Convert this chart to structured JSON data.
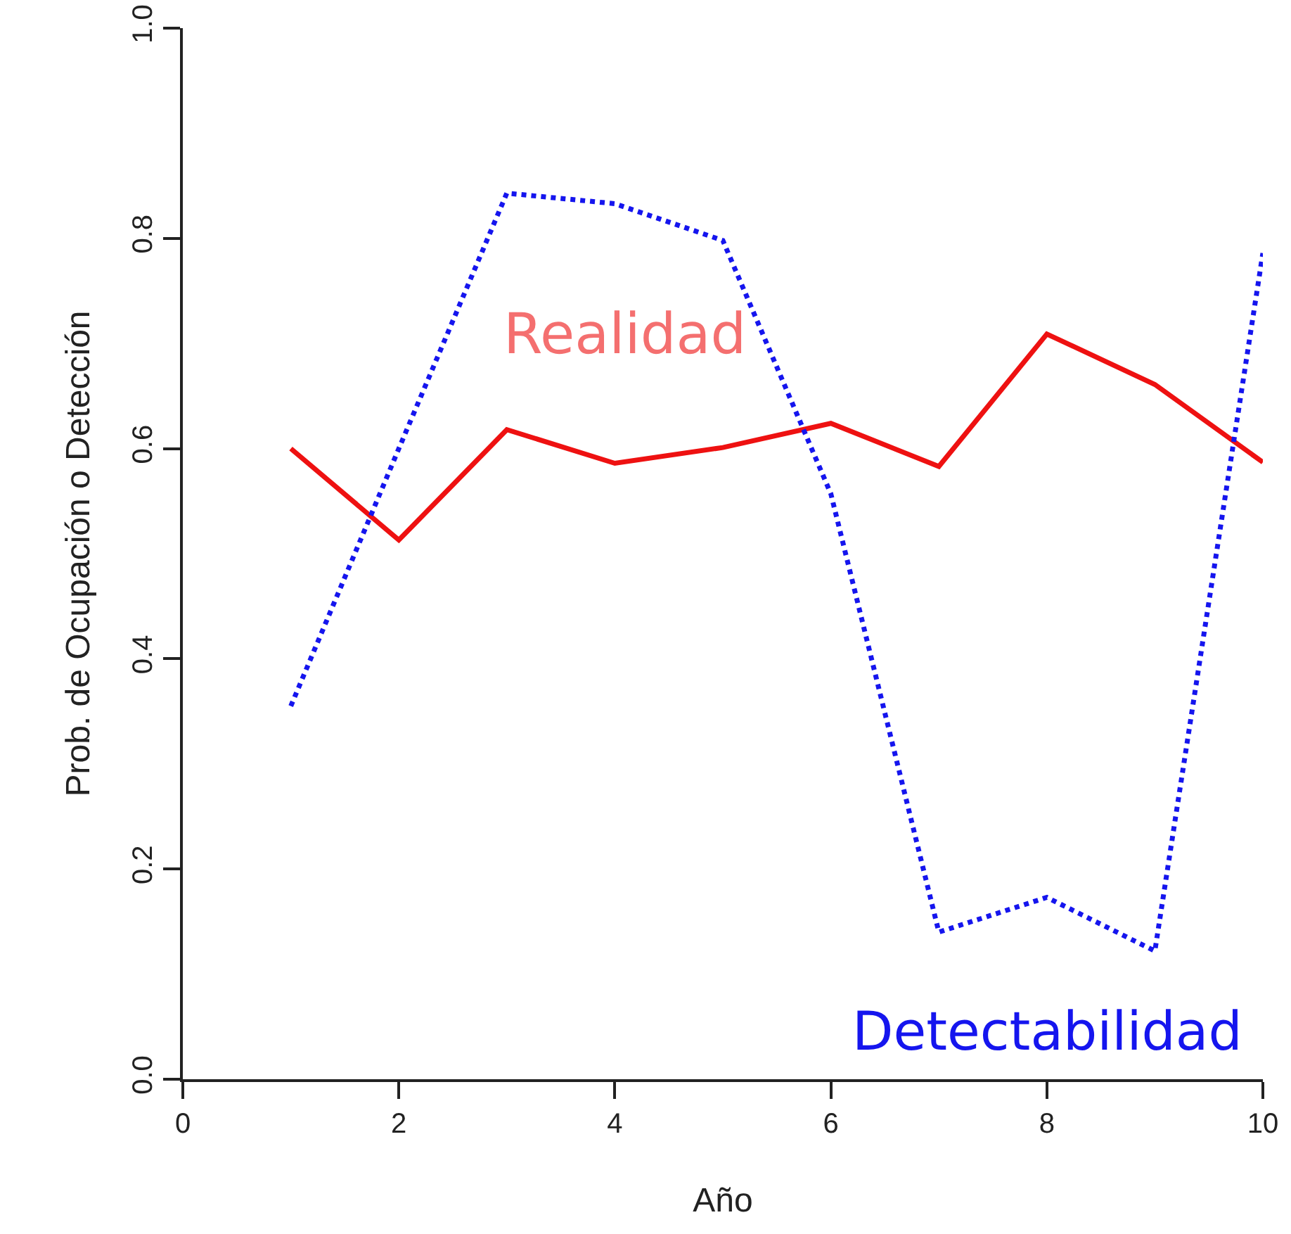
{
  "chart_data": {
    "type": "line",
    "xlabel": "Año",
    "ylabel": "Prob. de Ocupación o Detección",
    "x": [
      1,
      2,
      3,
      4,
      5,
      6,
      7,
      8,
      9,
      10
    ],
    "series": [
      {
        "name": "Realidad",
        "color": "#ee1111",
        "line_style": "solid",
        "values": [
          0.6,
          0.513,
          0.618,
          0.586,
          0.601,
          0.624,
          0.583,
          0.709,
          0.661,
          0.587
        ]
      },
      {
        "name": "Detectabilidad",
        "color": "#1515ee",
        "line_style": "dotted",
        "values": [
          0.355,
          0.6,
          0.843,
          0.833,
          0.798,
          0.557,
          0.14,
          0.173,
          0.122,
          0.786
        ]
      }
    ],
    "xlim": [
      0,
      10
    ],
    "xticks": [
      0,
      2,
      4,
      6,
      8,
      10
    ],
    "ylim": [
      0,
      1
    ],
    "yticks": [
      {
        "value": 0,
        "label": "0.0"
      },
      {
        "value": 0.2,
        "label": "0.2"
      },
      {
        "value": 0.4,
        "label": "0.4"
      },
      {
        "value": 0.6,
        "label": "0.6"
      },
      {
        "value": 0.8,
        "label": "0.8"
      },
      {
        "value": 1,
        "label": "1.0"
      }
    ],
    "grid": false,
    "legend": false,
    "marker": "none"
  }
}
